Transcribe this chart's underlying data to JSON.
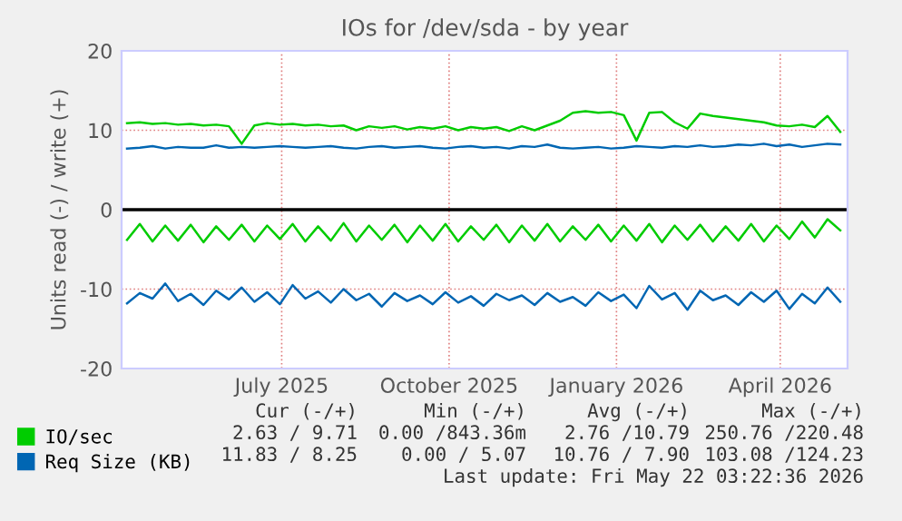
{
  "chart_data": {
    "type": "line",
    "title": "IOs for /dev/sda - by year",
    "ylabel": "Units read (-) / write (+)",
    "x": [
      "2025-04-07",
      "2025-04-14",
      "2025-04-21",
      "2025-04-28",
      "2025-05-05",
      "2025-05-12",
      "2025-05-19",
      "2025-05-26",
      "2025-06-02",
      "2025-06-09",
      "2025-06-16",
      "2025-06-23",
      "2025-06-30",
      "2025-07-07",
      "2025-07-14",
      "2025-07-21",
      "2025-07-28",
      "2025-08-04",
      "2025-08-11",
      "2025-08-18",
      "2025-08-25",
      "2025-09-01",
      "2025-09-08",
      "2025-09-15",
      "2025-09-22",
      "2025-09-29",
      "2025-10-06",
      "2025-10-13",
      "2025-10-20",
      "2025-10-27",
      "2025-11-03",
      "2025-11-10",
      "2025-11-17",
      "2025-11-24",
      "2025-12-01",
      "2025-12-08",
      "2025-12-15",
      "2025-12-22",
      "2025-12-29",
      "2026-01-05",
      "2026-01-12",
      "2026-01-19",
      "2026-01-26",
      "2026-02-02",
      "2026-02-09",
      "2026-02-16",
      "2026-02-23",
      "2026-03-02",
      "2026-03-09",
      "2026-03-16",
      "2026-03-23",
      "2026-03-30",
      "2026-04-06",
      "2026-04-13",
      "2026-04-20",
      "2026-04-27",
      "2026-05-04"
    ],
    "series": [
      {
        "name": "IO/sec",
        "color": "#00cc00",
        "values": [
          10.9,
          11.0,
          10.8,
          10.9,
          10.7,
          10.8,
          10.6,
          10.7,
          10.5,
          8.3,
          10.6,
          10.9,
          10.7,
          10.8,
          10.6,
          10.7,
          10.5,
          10.6,
          10.0,
          10.5,
          10.3,
          10.5,
          10.1,
          10.4,
          10.2,
          10.5,
          10.0,
          10.4,
          10.2,
          10.4,
          9.9,
          10.5,
          10.0,
          10.6,
          11.2,
          12.2,
          12.4,
          12.2,
          12.3,
          11.9,
          8.7,
          12.2,
          12.3,
          11.0,
          10.2,
          12.1,
          11.8,
          11.6,
          11.4,
          11.2,
          11.0,
          10.6,
          10.5,
          10.7,
          10.4,
          11.8,
          9.8
        ]
      },
      {
        "name": "Req Size (KB)",
        "color": "#0066b3",
        "values": [
          7.7,
          7.8,
          8.0,
          7.7,
          7.9,
          7.8,
          7.8,
          8.1,
          7.8,
          7.9,
          7.8,
          7.9,
          8.0,
          7.9,
          7.8,
          7.9,
          8.0,
          7.8,
          7.7,
          7.9,
          8.0,
          7.8,
          7.9,
          8.0,
          7.8,
          7.7,
          7.9,
          8.0,
          7.8,
          7.9,
          7.7,
          8.0,
          7.9,
          8.2,
          7.8,
          7.7,
          7.8,
          7.9,
          7.7,
          7.8,
          8.0,
          7.9,
          7.8,
          8.0,
          7.9,
          8.1,
          7.9,
          8.0,
          8.2,
          8.1,
          8.3,
          8.0,
          8.2,
          7.9,
          8.1,
          8.3,
          8.2
        ]
      },
      {
        "color": "#00cc00",
        "values": [
          -3.8,
          -1.8,
          -4.0,
          -2.0,
          -3.9,
          -1.9,
          -4.1,
          -2.1,
          -3.8,
          -1.9,
          -4.0,
          -2.0,
          -3.7,
          -1.8,
          -4.0,
          -2.1,
          -3.9,
          -1.7,
          -4.0,
          -2.0,
          -3.8,
          -1.9,
          -4.1,
          -2.0,
          -3.9,
          -1.8,
          -4.0,
          -2.1,
          -3.8,
          -1.9,
          -4.1,
          -2.0,
          -3.9,
          -1.8,
          -4.0,
          -2.1,
          -3.8,
          -1.9,
          -4.0,
          -2.0,
          -3.9,
          -1.8,
          -4.1,
          -2.0,
          -3.8,
          -1.9,
          -4.0,
          -2.1,
          -3.9,
          -1.8,
          -4.0,
          -2.0,
          -3.7,
          -1.5,
          -3.5,
          -1.2,
          -2.6
        ]
      },
      {
        "color": "#0066b3",
        "values": [
          -11.8,
          -10.5,
          -11.2,
          -9.3,
          -11.5,
          -10.6,
          -12.0,
          -10.2,
          -11.3,
          -9.8,
          -11.6,
          -10.4,
          -11.9,
          -9.5,
          -11.2,
          -10.3,
          -11.7,
          -10.0,
          -11.4,
          -10.6,
          -12.2,
          -10.5,
          -11.5,
          -10.8,
          -11.9,
          -10.4,
          -11.7,
          -10.9,
          -12.1,
          -10.6,
          -11.4,
          -10.8,
          -12.0,
          -10.5,
          -11.6,
          -11.0,
          -12.1,
          -10.4,
          -11.5,
          -10.7,
          -12.4,
          -9.6,
          -11.3,
          -10.5,
          -12.6,
          -10.2,
          -11.4,
          -10.8,
          -12.0,
          -10.4,
          -11.6,
          -10.2,
          -12.5,
          -10.6,
          -11.8,
          -9.8,
          -11.6
        ]
      }
    ],
    "xlim": [
      "2025-04-04",
      "2026-05-08"
    ],
    "xticks": [
      {
        "value": "2025-07-01",
        "label": "July 2025"
      },
      {
        "value": "2025-10-01",
        "label": "October 2025"
      },
      {
        "value": "2026-01-01",
        "label": "January 2026"
      },
      {
        "value": "2026-04-01",
        "label": "April 2026"
      }
    ],
    "ylim": [
      -20,
      20
    ],
    "yticks": [
      -20,
      -10,
      0,
      10,
      20
    ],
    "ref_lines": [
      {
        "axis": "y",
        "value": 0,
        "color": "#000000"
      }
    ],
    "grid": true,
    "legend": "bottom",
    "annotations": [
      "Cur (-/+)",
      "Min (-/+)",
      "Avg (-/+)",
      "Max (-/+)",
      "2.63 / 9.71",
      "0.00 /843.36m",
      "2.76 /10.79",
      "250.76 /220.48",
      "11.83 / 8.25",
      "0.00 / 5.07",
      "10.76 / 7.90",
      "103.08 /124.23",
      "Last update: Fri May 22 03:22:36 2026"
    ]
  }
}
